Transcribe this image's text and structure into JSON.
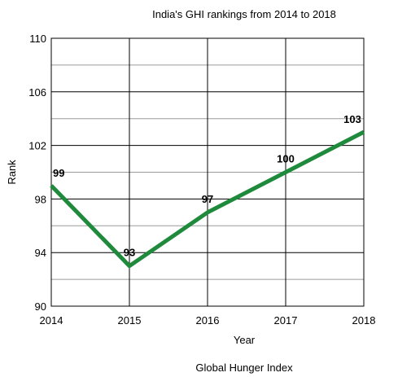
{
  "chart_data": {
    "type": "line",
    "title": "India's GHI rankings from 2014 to 2018",
    "xlabel": "Year",
    "ylabel": "Rank",
    "x": [
      2014,
      2015,
      2016,
      2017,
      2018
    ],
    "series": [
      {
        "values": [
          99,
          93,
          97,
          100,
          103
        ],
        "color": "#1f8a3c"
      }
    ],
    "x_ticks": [
      "2014",
      "2015",
      "2016",
      "2017",
      "2018"
    ],
    "y_ticks": [
      "90",
      "94",
      "98",
      "102",
      "106",
      "110"
    ],
    "y_minor_ticks": [
      92,
      96,
      100,
      104,
      108
    ],
    "ylim": [
      90,
      110
    ],
    "xlim": [
      2014,
      2018
    ],
    "data_labels": [
      "99",
      "93",
      "97",
      "100",
      "103"
    ],
    "grid": true,
    "legend": "none",
    "footer": "Global Hunger Index"
  }
}
